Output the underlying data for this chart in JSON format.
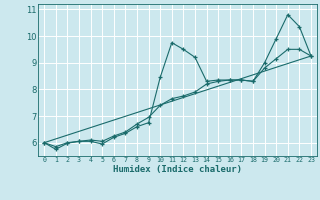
{
  "xlabel": "Humidex (Indice chaleur)",
  "bg_color": "#cce8ee",
  "grid_color": "#ffffff",
  "line_color": "#1a6b6b",
  "xlim": [
    -0.5,
    23.5
  ],
  "ylim": [
    5.5,
    11.2
  ],
  "yticks": [
    6,
    7,
    8,
    9,
    10,
    11
  ],
  "xticks": [
    0,
    1,
    2,
    3,
    4,
    5,
    6,
    7,
    8,
    9,
    10,
    11,
    12,
    13,
    14,
    15,
    16,
    17,
    18,
    19,
    20,
    21,
    22,
    23
  ],
  "line1_x": [
    0,
    1,
    2,
    3,
    4,
    5,
    6,
    7,
    8,
    9,
    10,
    11,
    12,
    13,
    14,
    15,
    16,
    17,
    18,
    19,
    20,
    21,
    22,
    23
  ],
  "line1_y": [
    6.0,
    5.75,
    5.98,
    6.05,
    6.05,
    5.95,
    6.2,
    6.35,
    6.6,
    6.75,
    8.45,
    9.75,
    9.5,
    9.2,
    8.3,
    8.35,
    8.35,
    8.35,
    8.3,
    9.0,
    9.9,
    10.8,
    10.35,
    9.25
  ],
  "line2_x": [
    0,
    1,
    2,
    3,
    4,
    5,
    6,
    7,
    8,
    9,
    10,
    11,
    12,
    13,
    14,
    15,
    16,
    17,
    18,
    19,
    20,
    21,
    22,
    23
  ],
  "line2_y": [
    6.0,
    5.85,
    6.0,
    6.05,
    6.1,
    6.05,
    6.25,
    6.4,
    6.7,
    6.95,
    7.4,
    7.65,
    7.75,
    7.9,
    8.2,
    8.3,
    8.35,
    8.35,
    8.3,
    8.8,
    9.15,
    9.5,
    9.5,
    9.25
  ],
  "line3_x": [
    0,
    23
  ],
  "line3_y": [
    6.0,
    9.25
  ]
}
